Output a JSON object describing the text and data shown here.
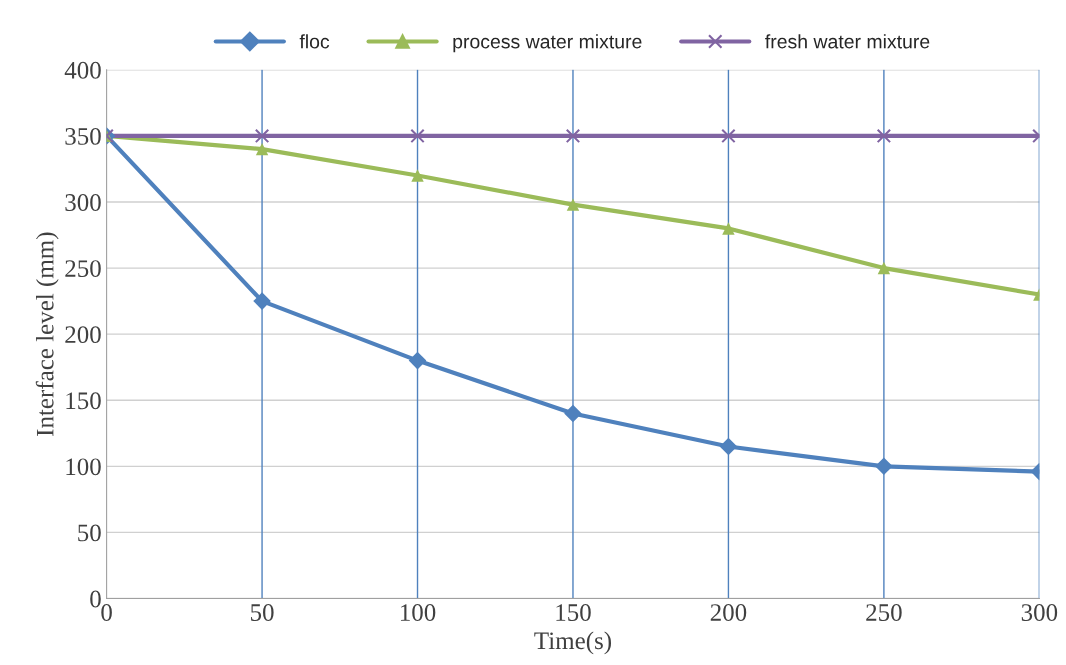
{
  "chart_data": {
    "type": "line",
    "xlabel": "Time(s)",
    "ylabel": "Interface level (mm)",
    "x": [
      0,
      50,
      100,
      150,
      200,
      250,
      300
    ],
    "series": [
      {
        "name": "floc",
        "color": "#4f81bd",
        "marker": "diamond",
        "values": [
          350,
          225,
          180,
          140,
          115,
          100,
          96
        ]
      },
      {
        "name": "process water mixture",
        "color": "#9bbb59",
        "marker": "triangle",
        "values": [
          350,
          340,
          320,
          298,
          280,
          250,
          230
        ]
      },
      {
        "name": "fresh water mixture",
        "color": "#8064a2",
        "marker": "cross",
        "values": [
          350,
          350,
          350,
          350,
          350,
          350,
          350
        ]
      }
    ],
    "xlim": [
      0,
      300
    ],
    "xticks": [
      0,
      50,
      100,
      150,
      200,
      250,
      300
    ],
    "ylim": [
      0,
      400
    ],
    "yticks": [
      0,
      50,
      100,
      150,
      200,
      250,
      300,
      350,
      400
    ],
    "ref_lines": [
      {
        "axis": "x",
        "value": 50,
        "color": "#4f81bd"
      },
      {
        "axis": "x",
        "value": 100,
        "color": "#4f81bd"
      },
      {
        "axis": "x",
        "value": 150,
        "color": "#4f81bd"
      },
      {
        "axis": "x",
        "value": 200,
        "color": "#4f81bd"
      },
      {
        "axis": "x",
        "value": 250,
        "color": "#4f81bd"
      },
      {
        "axis": "x",
        "value": 300,
        "color": "#4f81bd"
      }
    ],
    "grid": "y",
    "legend": "top",
    "line_style": "solid"
  }
}
